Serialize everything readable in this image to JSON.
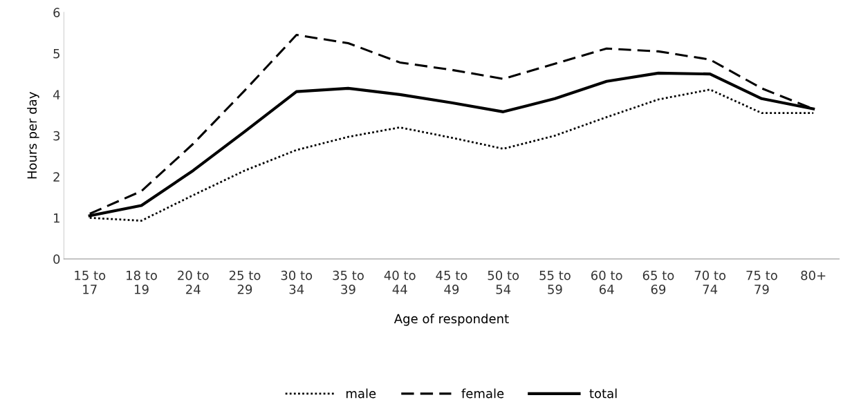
{
  "chart_data": {
    "type": "line",
    "xlabel": "Age of respondent",
    "ylabel": "Hours per day",
    "categories": [
      "15 to\n17",
      "18 to\n19",
      "20 to\n24",
      "25 to\n29",
      "30 to\n34",
      "35 to\n39",
      "40 to\n44",
      "45 to\n49",
      "50 to\n54",
      "55 to\n59",
      "60 to\n64",
      "65 to\n69",
      "70 to\n74",
      "75 to\n79",
      "80+"
    ],
    "series": [
      {
        "name": "male",
        "color": "#000000",
        "line_style": "dotted",
        "values": [
          1.0,
          0.93,
          1.55,
          2.15,
          2.65,
          2.97,
          3.2,
          2.95,
          2.68,
          3.0,
          3.45,
          3.88,
          4.12,
          3.55,
          3.55
        ]
      },
      {
        "name": "female",
        "color": "#000000",
        "line_style": "dashed",
        "values": [
          1.1,
          1.65,
          2.8,
          4.1,
          5.45,
          5.25,
          4.78,
          4.6,
          4.38,
          4.75,
          5.12,
          5.05,
          4.85,
          4.15,
          3.65
        ]
      },
      {
        "name": "total",
        "color": "#000000",
        "line_style": "solid",
        "values": [
          1.05,
          1.3,
          2.15,
          3.1,
          4.07,
          4.15,
          4.0,
          3.8,
          3.58,
          3.9,
          4.32,
          4.52,
          4.5,
          3.9,
          3.65
        ]
      }
    ],
    "ylim": [
      0,
      6
    ],
    "yticks": [
      0,
      1,
      2,
      3,
      4,
      5,
      6
    ],
    "grid": false,
    "legend": "bottom",
    "marker": "none"
  }
}
